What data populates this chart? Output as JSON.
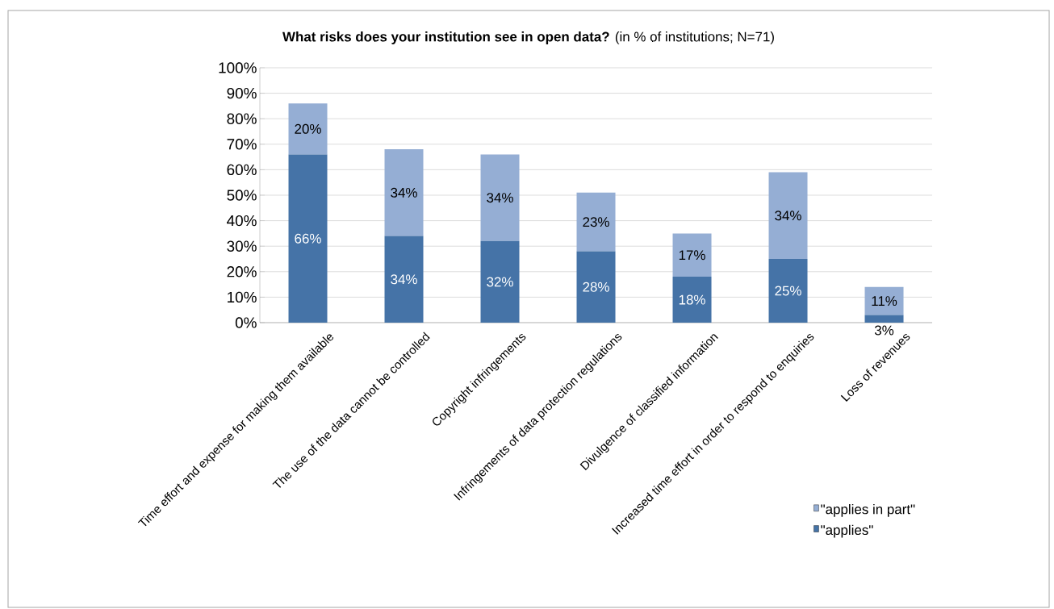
{
  "chart_data": {
    "type": "bar",
    "title": "**What risks does your institution see in open data?** (in % of institutions; N=71)",
    "categories": [
      "Time effort and expense  for making them available",
      "The use of the data cannot be controlled",
      "Copyright infringements",
      "Infringements of data protection regulations",
      "Divulgence of classified information",
      "Increased time effort in order to respond to enquiries",
      "Loss of revenues"
    ],
    "stacked": true,
    "series": [
      {
        "name": "\"applies\"",
        "color": "#4573a7",
        "values": [
          66,
          34,
          32,
          28,
          18,
          25,
          3
        ],
        "value_labels": [
          "66%",
          "34%",
          "32%",
          "28%",
          "18%",
          "25%",
          "3%"
        ]
      },
      {
        "name": "\"applies in part\"",
        "color": "#95aed4",
        "values": [
          20,
          34,
          34,
          23,
          17,
          34,
          11
        ],
        "value_labels": [
          "20%",
          "34%",
          "34%",
          "23%",
          "17%",
          "34%",
          "11%"
        ]
      }
    ],
    "ylim": [
      0,
      100
    ],
    "yticks": [
      {
        "value": 0,
        "label": "0%"
      },
      {
        "value": 10,
        "label": "10%"
      },
      {
        "value": 20,
        "label": "20%"
      },
      {
        "value": 30,
        "label": "30%"
      },
      {
        "value": 40,
        "label": "40%"
      },
      {
        "value": 50,
        "label": "50%"
      },
      {
        "value": 60,
        "label": "60%"
      },
      {
        "value": 70,
        "label": "70%"
      },
      {
        "value": 80,
        "label": "80%"
      },
      {
        "value": 90,
        "label": "90%"
      },
      {
        "value": 100,
        "label": "100%"
      }
    ],
    "grid": "y",
    "legend": "right"
  }
}
